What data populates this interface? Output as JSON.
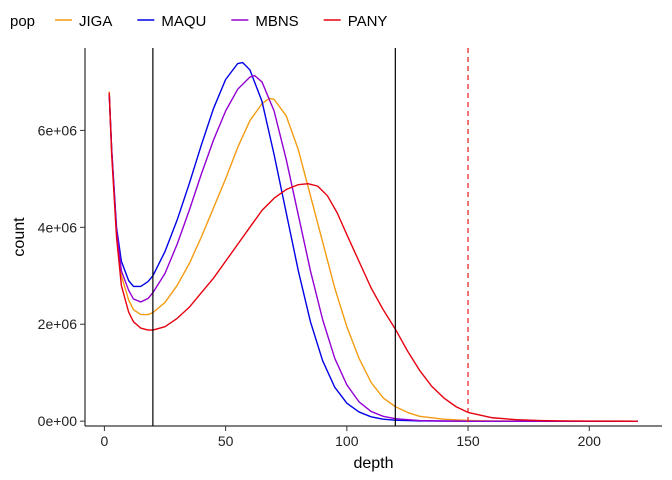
{
  "chart_data": {
    "type": "line",
    "title": "",
    "xlabel": "depth",
    "ylabel": "count",
    "xlim": [
      -8,
      230
    ],
    "ylim": [
      -100000,
      7700000
    ],
    "x_ticks": [
      0,
      50,
      100,
      150,
      200
    ],
    "y_ticks": [
      0,
      2000000,
      4000000,
      6000000
    ],
    "y_tick_labels": [
      "0e+00",
      "2e+06",
      "4e+06",
      "6e+06"
    ],
    "grid": false,
    "legend": {
      "title": "pop",
      "placement": "top-left"
    },
    "vlines": [
      {
        "x": 20,
        "style": "solid",
        "color": "#000000"
      },
      {
        "x": 120,
        "style": "solid",
        "color": "#000000"
      },
      {
        "x": 150,
        "style": "dashed",
        "color": "#e41a1c"
      }
    ],
    "series": [
      {
        "name": "JIGA",
        "color": "#f39c12",
        "points": [
          [
            2,
            6800000
          ],
          [
            3,
            5600000
          ],
          [
            5,
            3900000
          ],
          [
            7,
            3000000
          ],
          [
            10,
            2500000
          ],
          [
            12,
            2300000
          ],
          [
            15,
            2200000
          ],
          [
            18,
            2200000
          ],
          [
            20,
            2240000
          ],
          [
            25,
            2450000
          ],
          [
            30,
            2800000
          ],
          [
            35,
            3250000
          ],
          [
            40,
            3800000
          ],
          [
            45,
            4400000
          ],
          [
            50,
            5000000
          ],
          [
            55,
            5650000
          ],
          [
            60,
            6200000
          ],
          [
            65,
            6550000
          ],
          [
            68,
            6660000
          ],
          [
            70,
            6640000
          ],
          [
            75,
            6300000
          ],
          [
            80,
            5600000
          ],
          [
            85,
            4650000
          ],
          [
            90,
            3700000
          ],
          [
            95,
            2750000
          ],
          [
            100,
            1950000
          ],
          [
            105,
            1300000
          ],
          [
            110,
            800000
          ],
          [
            115,
            480000
          ],
          [
            120,
            300000
          ],
          [
            125,
            180000
          ],
          [
            130,
            100000
          ],
          [
            140,
            40000
          ],
          [
            150,
            15000
          ],
          [
            160,
            5000
          ],
          [
            180,
            1000
          ],
          [
            200,
            0
          ],
          [
            220,
            0
          ]
        ]
      },
      {
        "name": "MAQU",
        "color": "#0000e6",
        "points": [
          [
            2,
            6750000
          ],
          [
            3,
            5600000
          ],
          [
            5,
            4000000
          ],
          [
            7,
            3300000
          ],
          [
            10,
            2900000
          ],
          [
            12,
            2780000
          ],
          [
            15,
            2780000
          ],
          [
            18,
            2880000
          ],
          [
            20,
            3000000
          ],
          [
            25,
            3500000
          ],
          [
            30,
            4150000
          ],
          [
            35,
            4900000
          ],
          [
            40,
            5700000
          ],
          [
            45,
            6450000
          ],
          [
            50,
            7050000
          ],
          [
            55,
            7380000
          ],
          [
            57,
            7400000
          ],
          [
            60,
            7250000
          ],
          [
            65,
            6600000
          ],
          [
            70,
            5500000
          ],
          [
            75,
            4300000
          ],
          [
            80,
            3100000
          ],
          [
            85,
            2050000
          ],
          [
            90,
            1250000
          ],
          [
            95,
            700000
          ],
          [
            100,
            370000
          ],
          [
            105,
            190000
          ],
          [
            110,
            90000
          ],
          [
            115,
            40000
          ],
          [
            120,
            20000
          ],
          [
            130,
            5000
          ],
          [
            140,
            1000
          ],
          [
            150,
            0
          ],
          [
            220,
            0
          ]
        ]
      },
      {
        "name": "MBNS",
        "color": "#9400d3",
        "points": [
          [
            2,
            6750000
          ],
          [
            3,
            5600000
          ],
          [
            5,
            3950000
          ],
          [
            7,
            3100000
          ],
          [
            10,
            2700000
          ],
          [
            12,
            2520000
          ],
          [
            15,
            2460000
          ],
          [
            18,
            2530000
          ],
          [
            20,
            2650000
          ],
          [
            25,
            3050000
          ],
          [
            30,
            3650000
          ],
          [
            35,
            4350000
          ],
          [
            40,
            5100000
          ],
          [
            45,
            5800000
          ],
          [
            50,
            6400000
          ],
          [
            55,
            6850000
          ],
          [
            60,
            7100000
          ],
          [
            62,
            7130000
          ],
          [
            65,
            7000000
          ],
          [
            70,
            6400000
          ],
          [
            75,
            5400000
          ],
          [
            80,
            4250000
          ],
          [
            85,
            3100000
          ],
          [
            90,
            2100000
          ],
          [
            95,
            1300000
          ],
          [
            100,
            750000
          ],
          [
            105,
            400000
          ],
          [
            110,
            200000
          ],
          [
            115,
            100000
          ],
          [
            120,
            50000
          ],
          [
            130,
            12000
          ],
          [
            140,
            3000
          ],
          [
            150,
            0
          ],
          [
            220,
            0
          ]
        ]
      },
      {
        "name": "PANY",
        "color": "#e6000f",
        "points": [
          [
            2,
            6780000
          ],
          [
            3,
            5500000
          ],
          [
            5,
            3800000
          ],
          [
            7,
            2800000
          ],
          [
            10,
            2250000
          ],
          [
            12,
            2050000
          ],
          [
            15,
            1920000
          ],
          [
            18,
            1880000
          ],
          [
            20,
            1880000
          ],
          [
            25,
            1950000
          ],
          [
            30,
            2120000
          ],
          [
            35,
            2350000
          ],
          [
            40,
            2650000
          ],
          [
            45,
            2950000
          ],
          [
            50,
            3300000
          ],
          [
            55,
            3650000
          ],
          [
            60,
            4000000
          ],
          [
            65,
            4350000
          ],
          [
            70,
            4600000
          ],
          [
            75,
            4780000
          ],
          [
            80,
            4880000
          ],
          [
            84,
            4900000
          ],
          [
            88,
            4850000
          ],
          [
            92,
            4650000
          ],
          [
            96,
            4300000
          ],
          [
            100,
            3850000
          ],
          [
            105,
            3300000
          ],
          [
            110,
            2750000
          ],
          [
            115,
            2300000
          ],
          [
            120,
            1900000
          ],
          [
            125,
            1450000
          ],
          [
            130,
            1050000
          ],
          [
            135,
            720000
          ],
          [
            140,
            480000
          ],
          [
            145,
            300000
          ],
          [
            150,
            180000
          ],
          [
            160,
            70000
          ],
          [
            170,
            30000
          ],
          [
            180,
            12000
          ],
          [
            190,
            5000
          ],
          [
            200,
            2000
          ],
          [
            210,
            800
          ],
          [
            220,
            0
          ]
        ]
      }
    ]
  }
}
